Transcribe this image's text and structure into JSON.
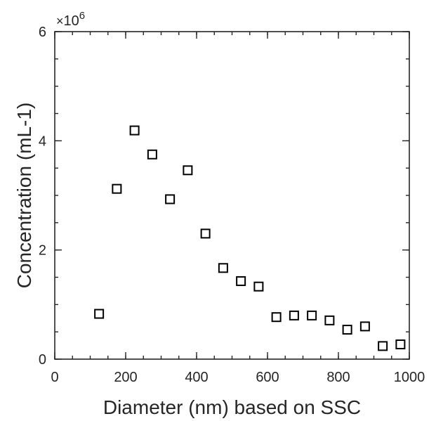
{
  "chart_data": {
    "type": "scatter",
    "xlabel": "Diameter (nm) based on SSC",
    "ylabel": "Concentration (mL-1)",
    "y_exponent_label": "10",
    "y_exponent_power": "6",
    "y_exponent_prefix": "×",
    "xlim": [
      0,
      1000
    ],
    "ylim": [
      0,
      6
    ],
    "xticks": [
      0,
      200,
      400,
      600,
      800,
      1000
    ],
    "xtick_labels": [
      "0",
      "200",
      "400",
      "600",
      "800",
      "1000"
    ],
    "yticks": [
      0,
      2,
      4,
      6
    ],
    "ytick_labels": [
      "0",
      "2",
      "4",
      "6"
    ],
    "grid": false,
    "marker": "square",
    "marker_color": "#000000",
    "series": [
      {
        "x": [
          125,
          175,
          225,
          275,
          325,
          375,
          425,
          475,
          525,
          575,
          625,
          675,
          725,
          775,
          825,
          875,
          925,
          975
        ],
        "y": [
          0.83,
          3.12,
          4.19,
          3.75,
          2.93,
          3.46,
          2.3,
          1.67,
          1.43,
          1.33,
          0.77,
          0.8,
          0.8,
          0.71,
          0.54,
          0.6,
          0.24,
          0.27
        ]
      }
    ]
  }
}
